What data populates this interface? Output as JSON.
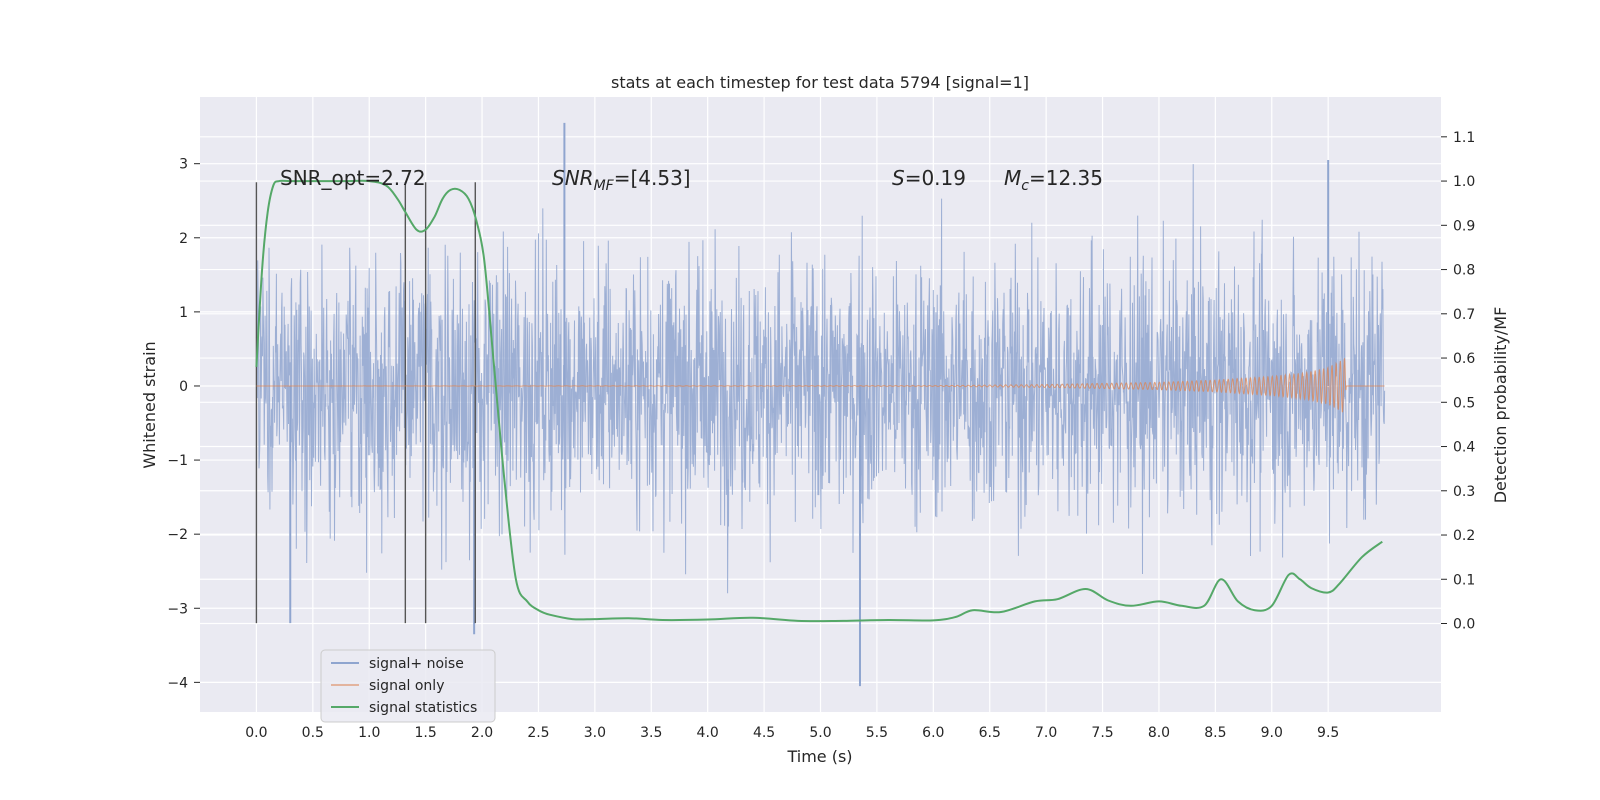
{
  "chart_data": {
    "type": "line",
    "title": "stats at each timestep for test data 5794 [signal=1]",
    "xlabel": "Time (s)",
    "ylabel_left": "Whitened strain",
    "ylabel_right": "Detection probability/MF",
    "xlim": [
      -0.5,
      10.5
    ],
    "ylim_left": [
      -4.4,
      3.9
    ],
    "ylim_right": [
      -0.2,
      1.19
    ],
    "xticks": [
      "0.0",
      "0.5",
      "1.0",
      "1.5",
      "2.0",
      "2.5",
      "3.0",
      "3.5",
      "4.0",
      "4.5",
      "5.0",
      "5.5",
      "6.0",
      "6.5",
      "7.0",
      "7.5",
      "8.0",
      "8.5",
      "9.0",
      "9.5"
    ],
    "xtick_values": [
      0,
      0.5,
      1,
      1.5,
      2,
      2.5,
      3,
      3.5,
      4,
      4.5,
      5,
      5.5,
      6,
      6.5,
      7,
      7.5,
      8,
      8.5,
      9,
      9.5
    ],
    "yticks_left": [
      "3",
      "2",
      "1",
      "0",
      "−1",
      "−2",
      "−3",
      "−4"
    ],
    "ytick_values_left": [
      3,
      2,
      1,
      0,
      -1,
      -2,
      -3,
      -4
    ],
    "yticks_right": [
      "1.1",
      "1.0",
      "0.9",
      "0.8",
      "0.7",
      "0.6",
      "0.5",
      "0.4",
      "0.3",
      "0.2",
      "0.1",
      "0.0"
    ],
    "ytick_values_right": [
      1.1,
      1.0,
      0.9,
      0.8,
      0.7,
      0.6,
      0.5,
      0.4,
      0.3,
      0.2,
      0.1,
      0.0
    ],
    "grid": true,
    "legend_position": "lower-left",
    "annotations": {
      "snr_opt": "SNR_opt=2.72",
      "snr_mf_main": "SNR",
      "snr_mf_sub": "MF",
      "snr_mf_value": "=[4.53]",
      "s_main": "S",
      "s_value": "=0.19",
      "mc_main": "M",
      "mc_sub": "c",
      "mc_value": "=12.35"
    },
    "vertical_markers": [
      0.0,
      1.32,
      1.5,
      1.94
    ],
    "series": [
      {
        "name": "signal+ noise",
        "axis": "left",
        "color": "#8fa5cf",
        "description_only": "dense noise band",
        "x_range": [
          0.0,
          10.0
        ],
        "typical_amplitude": 1.5,
        "extreme_points": [
          [
            2.73,
            3.55
          ],
          [
            5.35,
            -4.05
          ],
          [
            9.5,
            3.05
          ],
          [
            0.3,
            -3.2
          ],
          [
            1.93,
            -3.35
          ]
        ]
      },
      {
        "name": "signal only",
        "axis": "left",
        "color": "#dd8452",
        "x": [
          0.0,
          6.0,
          7.0,
          8.0,
          8.5,
          9.0,
          9.3,
          9.5,
          9.6,
          9.65,
          9.66,
          10.0
        ],
        "y_envelope": [
          0.0,
          0.005,
          0.02,
          0.05,
          0.08,
          0.13,
          0.18,
          0.25,
          0.33,
          0.38,
          0.0,
          0.0
        ]
      },
      {
        "name": "signal statistics",
        "axis": "right",
        "color": "#55a868",
        "x": [
          0.0,
          0.05,
          0.1,
          0.15,
          0.2,
          0.3,
          0.5,
          0.8,
          1.0,
          1.15,
          1.25,
          1.32,
          1.42,
          1.5,
          1.58,
          1.65,
          1.72,
          1.8,
          1.88,
          1.95,
          2.02,
          2.1,
          2.2,
          2.3,
          2.4,
          2.5,
          2.6,
          2.8,
          3.0,
          3.3,
          3.6,
          4.0,
          4.4,
          4.8,
          5.2,
          5.6,
          6.0,
          6.2,
          6.35,
          6.6,
          6.9,
          7.1,
          7.35,
          7.55,
          7.75,
          8.0,
          8.2,
          8.4,
          8.55,
          8.7,
          8.85,
          9.0,
          9.15,
          9.25,
          9.35,
          9.5,
          9.6,
          9.8,
          9.98
        ],
        "y": [
          0.58,
          0.8,
          0.93,
          0.99,
          1.0,
          1.0,
          1.0,
          1.0,
          1.0,
          0.99,
          0.96,
          0.93,
          0.89,
          0.89,
          0.92,
          0.96,
          0.98,
          0.98,
          0.96,
          0.91,
          0.82,
          0.6,
          0.32,
          0.1,
          0.05,
          0.03,
          0.02,
          0.01,
          0.01,
          0.012,
          0.008,
          0.009,
          0.013,
          0.006,
          0.006,
          0.008,
          0.007,
          0.015,
          0.03,
          0.026,
          0.05,
          0.055,
          0.078,
          0.052,
          0.04,
          0.05,
          0.04,
          0.04,
          0.1,
          0.05,
          0.03,
          0.04,
          0.11,
          0.1,
          0.08,
          0.07,
          0.09,
          0.15,
          0.185
        ]
      }
    ]
  }
}
